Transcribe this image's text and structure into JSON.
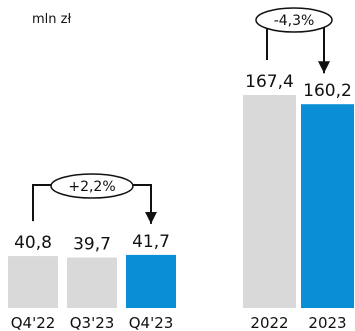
{
  "chart_data": {
    "type": "bar",
    "unit_label": "mln zł",
    "groups": [
      {
        "categories": [
          "Q4'22",
          "Q3'23",
          "Q4'23"
        ],
        "values": [
          40.8,
          39.7,
          41.7
        ],
        "value_labels": [
          "40,8",
          "39,7",
          "41,7"
        ],
        "highlight_index": 2,
        "change_label": "+2,2%"
      },
      {
        "categories": [
          "2022",
          "2023"
        ],
        "values": [
          167.4,
          160.2
        ],
        "value_labels": [
          "167,4",
          "160,2"
        ],
        "highlight_index": 1,
        "change_label": "-4,3%"
      }
    ],
    "colors": {
      "base": "#d9d9d9",
      "highlight": "#0a8fd6",
      "text": "#111111"
    },
    "scale": "linear",
    "grid": false,
    "legend": "none"
  }
}
